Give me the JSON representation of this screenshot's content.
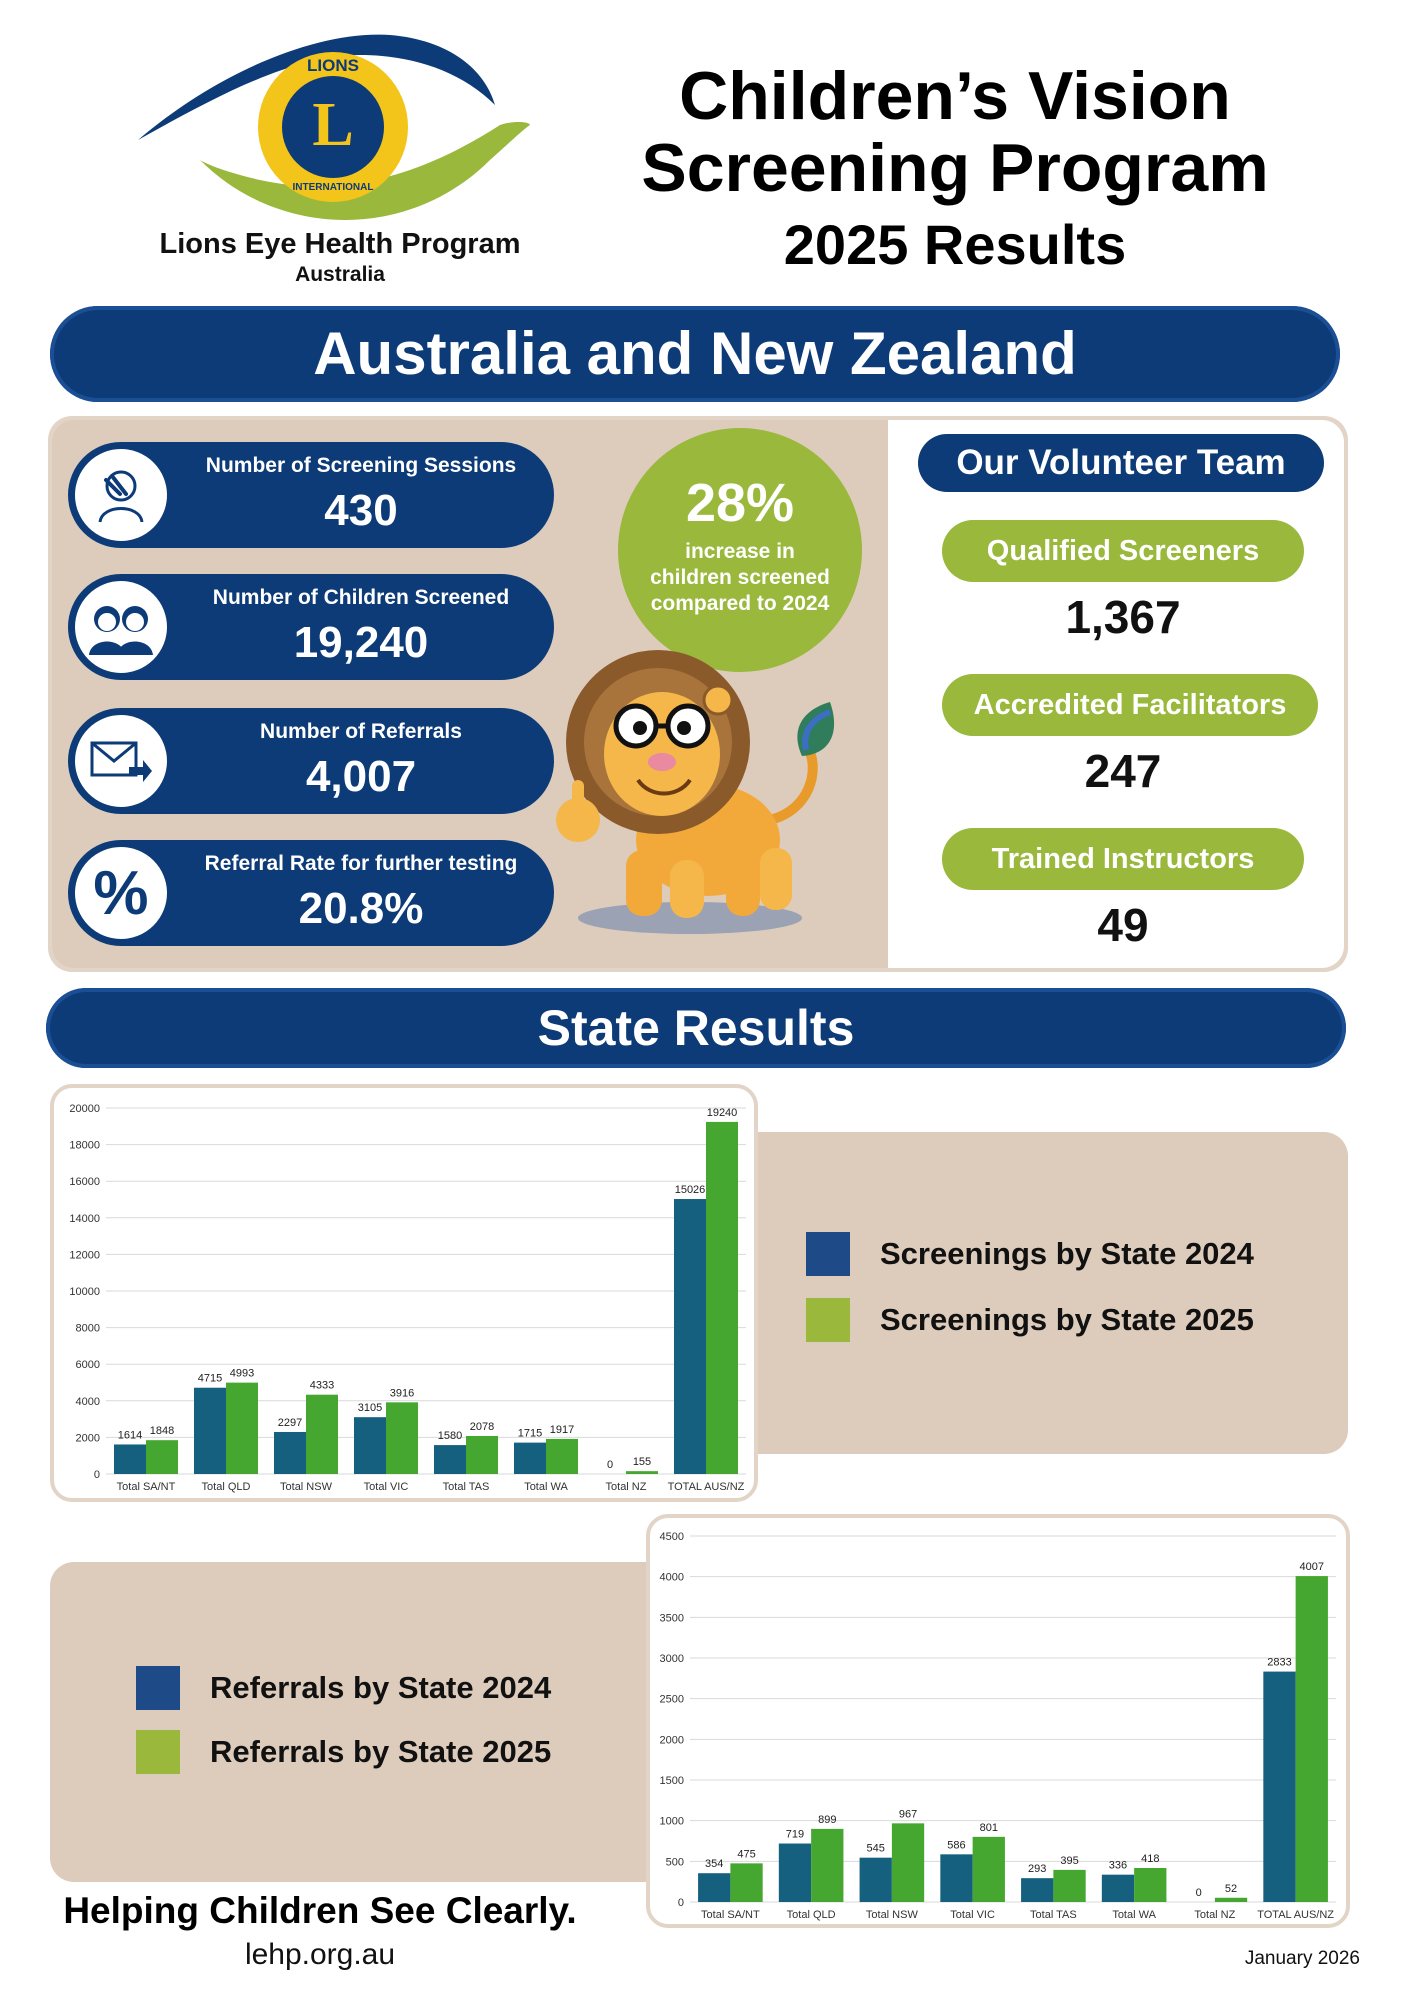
{
  "header": {
    "logo_text": "Lions Eye Health Program",
    "logo_sub": "Australia",
    "badge_top": "LIONS",
    "badge_letter": "L",
    "badge_bottom": "INTERNATIONAL",
    "title_line1": "Children’s Vision",
    "title_line2": "Screening Program",
    "title_line3": "2025 Results"
  },
  "region_banner": "Australia and New Zealand",
  "stats": [
    {
      "label": "Number of Screening Sessions",
      "value": "430",
      "icon": "child-eye-icon"
    },
    {
      "label": "Number of Children Screened",
      "value": "19,240",
      "icon": "children-icon"
    },
    {
      "label": "Number of Referrals",
      "value": "4,007",
      "icon": "envelope-arrow-icon"
    },
    {
      "label": "Referral Rate for further testing",
      "value": "20.8%",
      "icon": "percent-icon"
    }
  ],
  "increase": {
    "value": "28%",
    "line1": "increase in",
    "line2": "children screened",
    "line3": "compared to 2024"
  },
  "volunteers": {
    "title": "Our Volunteer Team",
    "items": [
      {
        "label": "Qualified Screeners",
        "value": "1,367"
      },
      {
        "label": "Accredited Facilitators",
        "value": "247"
      },
      {
        "label": "Trained Instructors",
        "value": "49"
      }
    ]
  },
  "state_banner": "State Results",
  "colors": {
    "navy": "#0d3b78",
    "green": "#9ab83c",
    "bar2024": "#16607f",
    "bar2025": "#45a630",
    "beige": "#ddccbc"
  },
  "chart_data": [
    {
      "type": "bar",
      "categories": [
        "Total SA/NT",
        "Total QLD",
        "Total NSW",
        "Total VIC",
        "Total TAS",
        "Total WA",
        "Total NZ",
        "TOTAL AUS/NZ"
      ],
      "series": [
        {
          "name": "Screenings by State 2024",
          "values": [
            1614,
            4715,
            2297,
            3105,
            1580,
            1715,
            0,
            15026
          ]
        },
        {
          "name": "Screenings by State 2025",
          "values": [
            1848,
            4993,
            4333,
            3916,
            2078,
            1917,
            155,
            19240
          ]
        }
      ],
      "ylim": [
        0,
        20000
      ],
      "yticks": [
        0,
        2000,
        4000,
        6000,
        8000,
        10000,
        12000,
        14000,
        16000,
        18000,
        20000
      ],
      "legend": "right",
      "grid": true
    },
    {
      "type": "bar",
      "categories": [
        "Total SA/NT",
        "Total QLD",
        "Total NSW",
        "Total VIC",
        "Total TAS",
        "Total WA",
        "Total NZ",
        "TOTAL AUS/NZ"
      ],
      "series": [
        {
          "name": "Referrals by State 2024",
          "values": [
            354,
            719,
            545,
            586,
            293,
            336,
            0,
            2833
          ]
        },
        {
          "name": "Referrals by State 2025",
          "values": [
            475,
            899,
            967,
            801,
            395,
            418,
            52,
            4007
          ]
        }
      ],
      "ylim": [
        0,
        4500
      ],
      "yticks": [
        0,
        500,
        1000,
        1500,
        2000,
        2500,
        3000,
        3500,
        4000,
        4500
      ],
      "legend": "left",
      "grid": true
    }
  ],
  "footer": {
    "tagline": "Helping Children See Clearly.",
    "url": "lehp.org.au",
    "date": "January 2026"
  }
}
